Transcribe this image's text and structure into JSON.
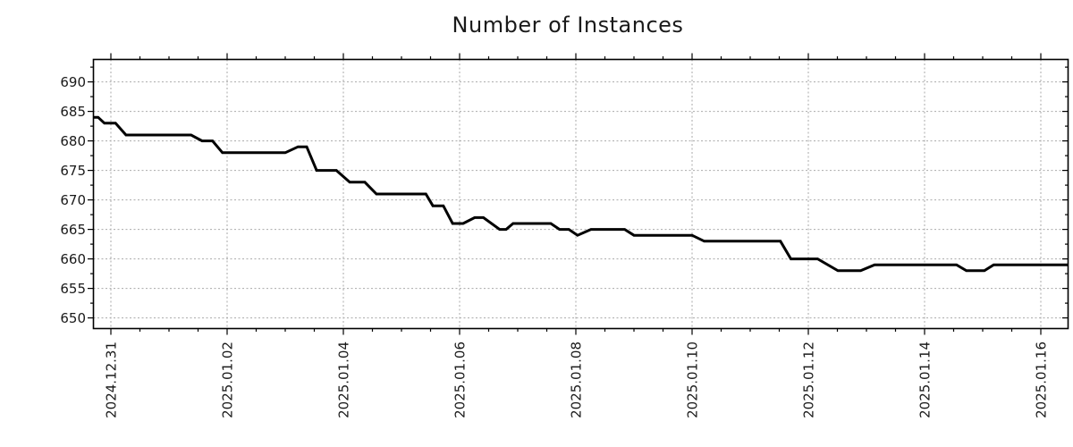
{
  "title": "Number of Instances",
  "chart_data": {
    "type": "line",
    "title": "Number of Instances",
    "xlabel": "",
    "ylabel": "",
    "legend": null,
    "grid": "major-dashed",
    "line_color": "#000000",
    "grid_color": "#a9a9a9",
    "axis_color": "#000000",
    "text_color": "#1a1a1a",
    "background_color": "#ffffff",
    "xlim_days_from_2024_12_31": [
      -0.3,
      16.47
    ],
    "ylim": [
      648.2,
      693.8
    ],
    "y_major": [
      650,
      655,
      660,
      665,
      670,
      675,
      680,
      685,
      690
    ],
    "y_minor": [
      652.5,
      657.5,
      662.5,
      667.5,
      672.5,
      677.5,
      682.5,
      687.5,
      692.5
    ],
    "x_major": [
      {
        "day": 0,
        "label": "2024.12.31"
      },
      {
        "day": 2,
        "label": "2025.01.02"
      },
      {
        "day": 4,
        "label": "2025.01.04"
      },
      {
        "day": 6,
        "label": "2025.01.06"
      },
      {
        "day": 8,
        "label": "2025.01.08"
      },
      {
        "day": 10,
        "label": "2025.01.10"
      },
      {
        "day": 12,
        "label": "2025.01.12"
      },
      {
        "day": 14,
        "label": "2025.01.14"
      },
      {
        "day": 16,
        "label": "2025.01.16"
      }
    ],
    "x_minor": [
      0.5,
      1,
      1.5,
      2.5,
      3,
      3.5,
      4.5,
      5,
      5.5,
      6.5,
      7,
      7.5,
      8.5,
      9,
      9.5,
      10.5,
      11,
      11.5,
      12.5,
      13,
      13.5,
      14.5,
      15,
      15.5
    ],
    "points_day_value": [
      [
        -0.3,
        684
      ],
      [
        -0.22,
        684
      ],
      [
        -0.11,
        683
      ],
      [
        0.08,
        683
      ],
      [
        0.26,
        681
      ],
      [
        1.38,
        681
      ],
      [
        1.57,
        680
      ],
      [
        1.75,
        680
      ],
      [
        1.92,
        678
      ],
      [
        3.0,
        678
      ],
      [
        3.22,
        679
      ],
      [
        3.37,
        679
      ],
      [
        3.54,
        675
      ],
      [
        3.88,
        675
      ],
      [
        4.11,
        673
      ],
      [
        4.37,
        673
      ],
      [
        4.57,
        671
      ],
      [
        5.42,
        671
      ],
      [
        5.54,
        669
      ],
      [
        5.72,
        669
      ],
      [
        5.88,
        666
      ],
      [
        6.06,
        666
      ],
      [
        6.26,
        667
      ],
      [
        6.41,
        667
      ],
      [
        6.69,
        665
      ],
      [
        6.8,
        665
      ],
      [
        6.92,
        666
      ],
      [
        7.57,
        666
      ],
      [
        7.72,
        665
      ],
      [
        7.88,
        665
      ],
      [
        8.03,
        664
      ],
      [
        8.26,
        665
      ],
      [
        8.84,
        665
      ],
      [
        9.0,
        664
      ],
      [
        10.0,
        664
      ],
      [
        10.21,
        663
      ],
      [
        11.52,
        663
      ],
      [
        11.7,
        660
      ],
      [
        12.16,
        660
      ],
      [
        12.51,
        658
      ],
      [
        12.9,
        658
      ],
      [
        13.14,
        659
      ],
      [
        14.55,
        659
      ],
      [
        14.72,
        658
      ],
      [
        15.03,
        658
      ],
      [
        15.19,
        659
      ],
      [
        16.47,
        659
      ]
    ]
  }
}
